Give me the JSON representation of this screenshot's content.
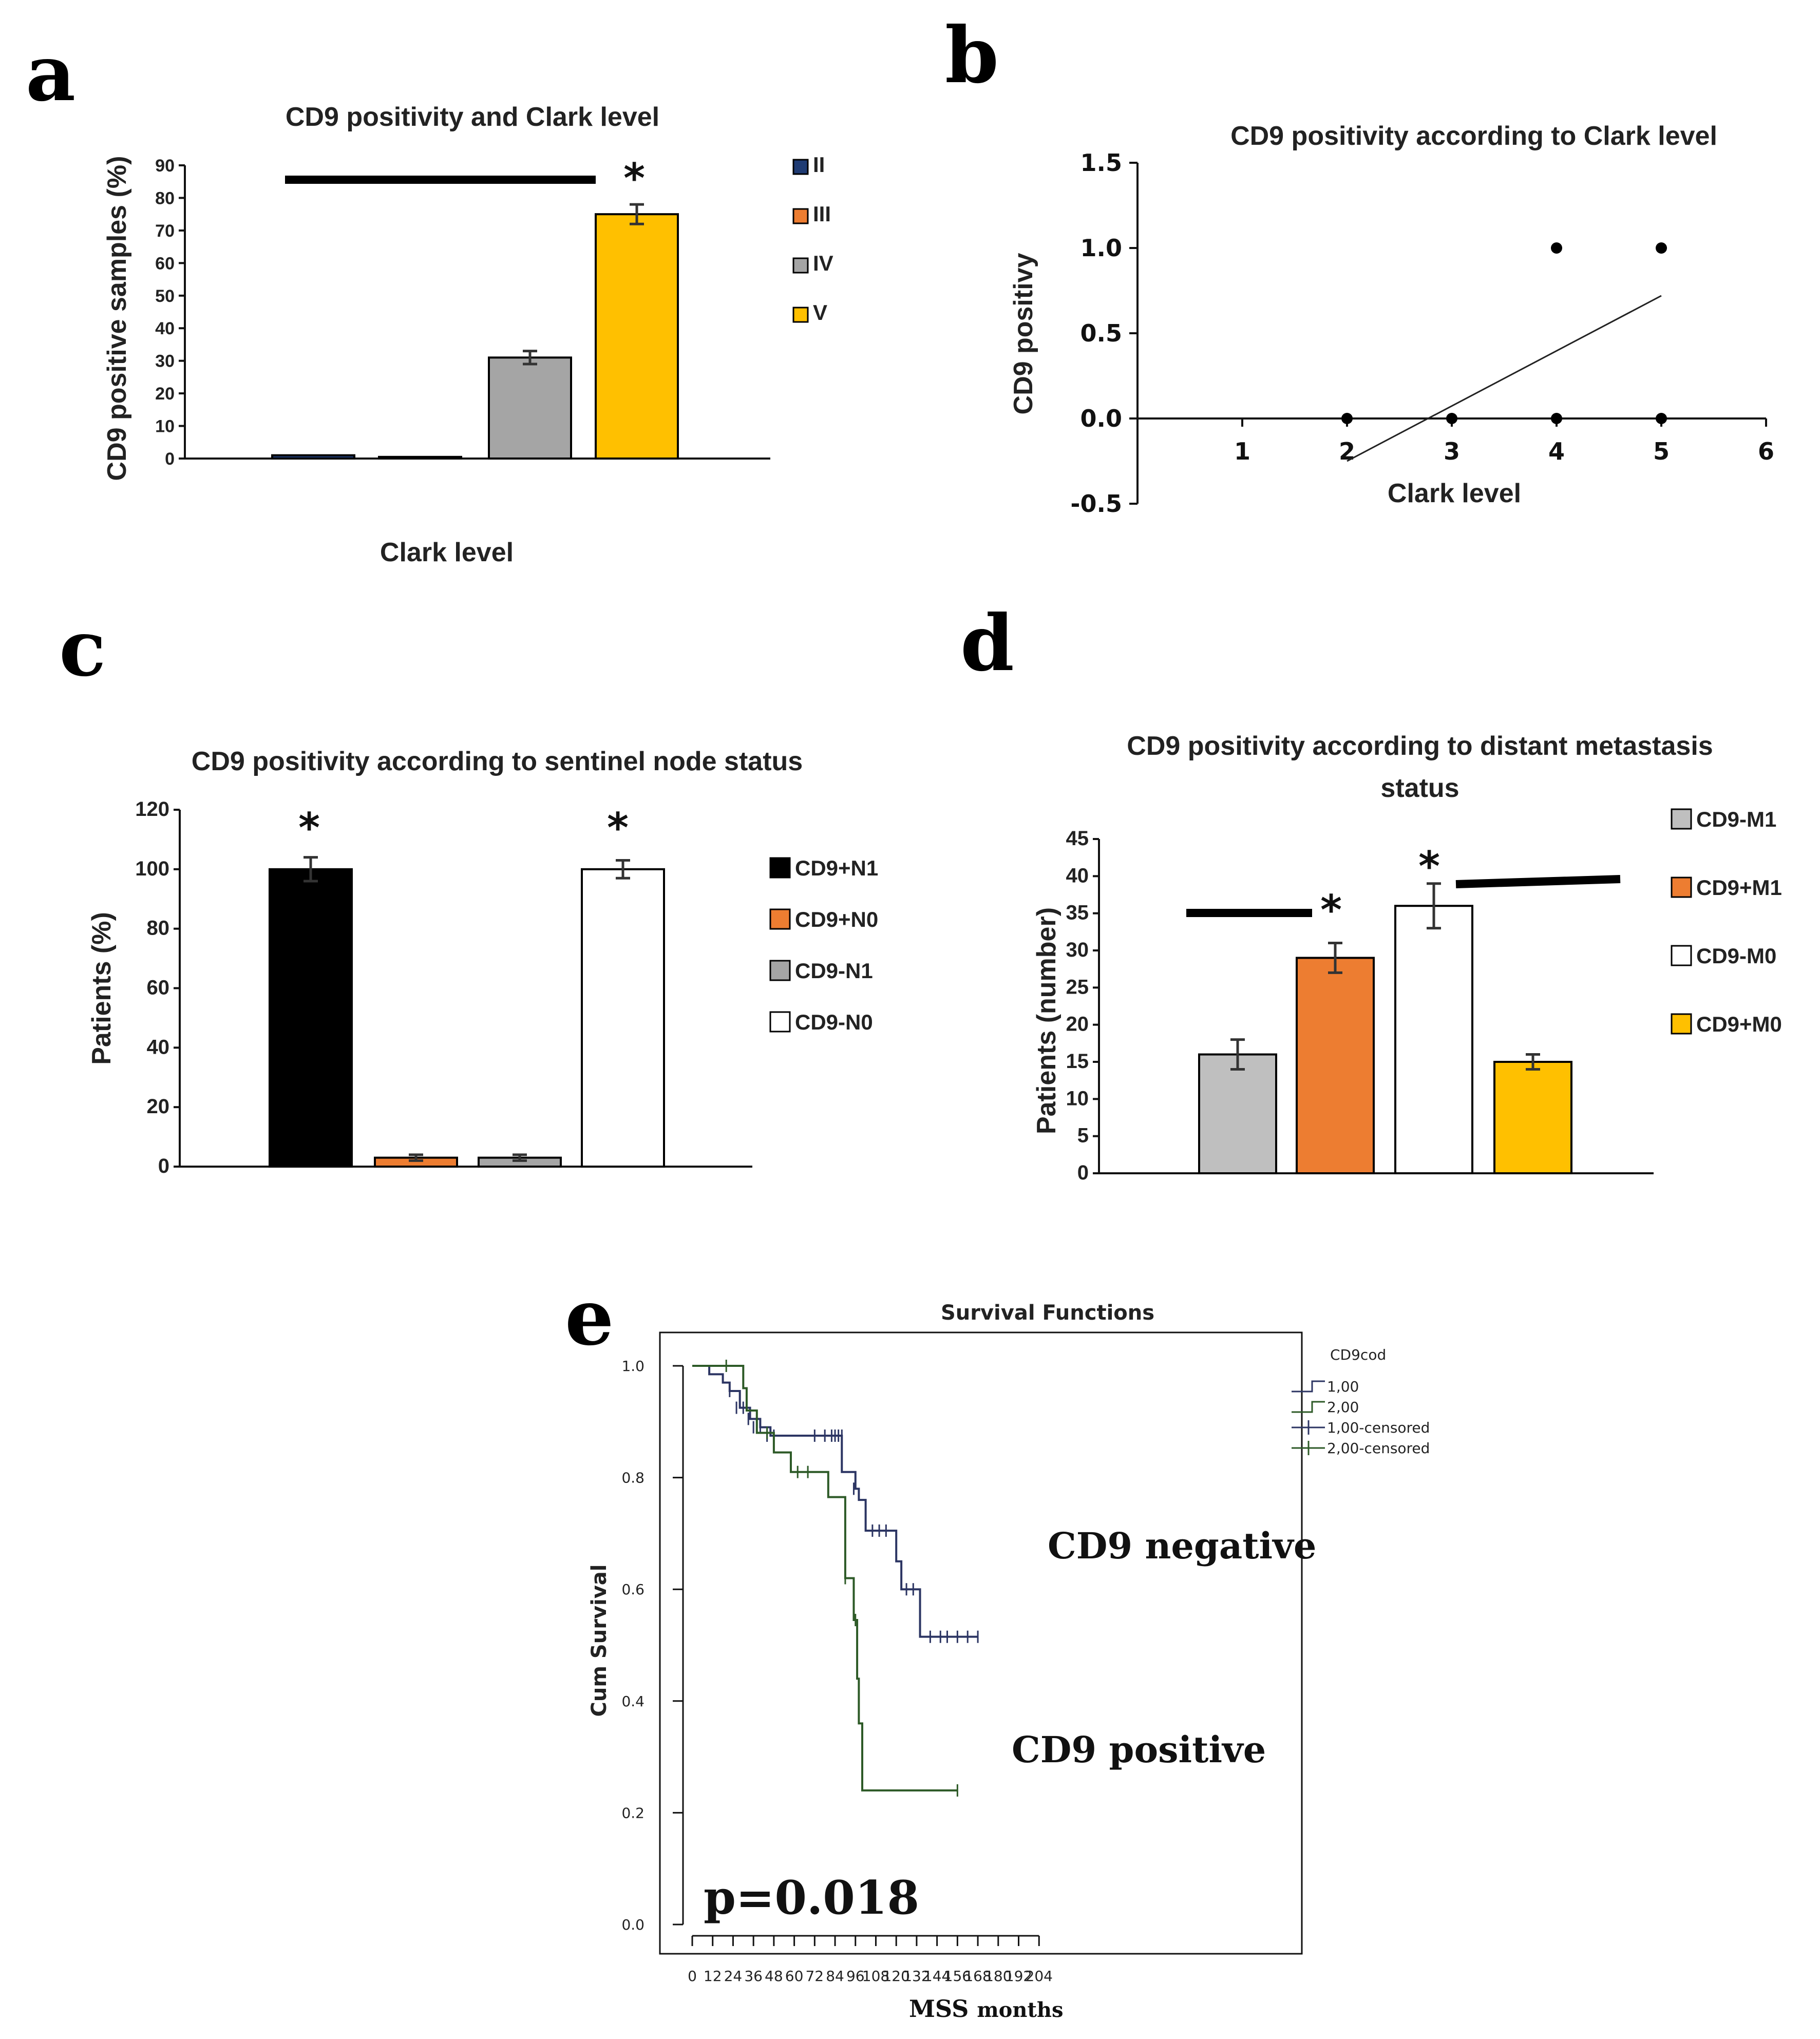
{
  "chart_data": [
    {
      "id": "a",
      "panel_label": "a",
      "type": "bar",
      "title": "CD9 positivity and Clark level",
      "xlabel": "Clark level",
      "ylabel": "CD9 positive samples (%)",
      "ylim": [
        0,
        90
      ],
      "yticks": [
        0,
        10,
        20,
        30,
        40,
        50,
        60,
        70,
        80,
        90
      ],
      "categories": [
        "II",
        "III",
        "IV",
        "V"
      ],
      "values": [
        1,
        0.5,
        31,
        75
      ],
      "errors": [
        0,
        0,
        2,
        3
      ],
      "colors": [
        "#1f3b73",
        "#ed7d31",
        "#a5a5a5",
        "#ffc000"
      ],
      "legend": [
        "II",
        "III",
        "IV",
        "V"
      ],
      "annotations": [
        "*"
      ]
    },
    {
      "id": "b",
      "panel_label": "b",
      "type": "scatter",
      "title": "CD9 positivity according to Clark level",
      "xlabel": "Clark level",
      "ylabel": "CD9 positivy",
      "xlim": [
        0,
        6
      ],
      "ylim": [
        -0.5,
        1.5
      ],
      "xticks": [
        1,
        2,
        3,
        4,
        5,
        6
      ],
      "yticks": [
        "-0.5",
        "0.0",
        "0.5",
        "1.0",
        "1.5"
      ],
      "points": [
        [
          2,
          0
        ],
        [
          3,
          0
        ],
        [
          4,
          0
        ],
        [
          5,
          0
        ],
        [
          4,
          1
        ],
        [
          5,
          1
        ]
      ],
      "fit_line": [
        [
          2,
          -0.25
        ],
        [
          5,
          0.72
        ]
      ]
    },
    {
      "id": "c",
      "panel_label": "c",
      "type": "bar",
      "title": "CD9 positivity according to sentinel node status",
      "xlabel": "",
      "ylabel": "Patients (%)",
      "ylim": [
        0,
        120
      ],
      "yticks": [
        0,
        20,
        40,
        60,
        80,
        100,
        120
      ],
      "categories": [
        "CD9+N1",
        "CD9+N0",
        "CD9-N1",
        "CD9-N0"
      ],
      "values": [
        100,
        3,
        3,
        100
      ],
      "errors": [
        4,
        1,
        1,
        3
      ],
      "colors": [
        "#000000",
        "#ed7d31",
        "#a5a5a5",
        "#ffffff"
      ],
      "legend": [
        "CD9+N1",
        "CD9+N0",
        "CD9-N1",
        "CD9-N0"
      ],
      "annotations": [
        "*",
        "*"
      ]
    },
    {
      "id": "d",
      "panel_label": "d",
      "type": "bar",
      "title": "CD9 positivity according to distant metastasis",
      "title_line2": "status",
      "xlabel": "",
      "ylabel": "Patients (number)",
      "ylim": [
        0,
        45
      ],
      "yticks": [
        0,
        5,
        10,
        15,
        20,
        25,
        30,
        35,
        40,
        45
      ],
      "categories": [
        "CD9-M1",
        "CD9+M1",
        "CD9-M0",
        "CD9+M0"
      ],
      "values": [
        16,
        29,
        36,
        15
      ],
      "errors": [
        2,
        2,
        3,
        1
      ],
      "colors": [
        "#bfbfbf",
        "#ed7d31",
        "#ffffff",
        "#ffc000"
      ],
      "legend": [
        "CD9-M1",
        "CD9+M1",
        "CD9-M0",
        "CD9+M0"
      ],
      "annotations": [
        "*",
        "*"
      ]
    },
    {
      "id": "e",
      "panel_label": "e",
      "type": "line",
      "title": "Survival Functions",
      "xlabel": "MSS",
      "xlabel_unit": "months",
      "ylabel": "Cum Survival",
      "xlim": [
        0,
        204
      ],
      "ylim": [
        0,
        1
      ],
      "xticks": [
        0,
        12,
        24,
        36,
        48,
        60,
        72,
        84,
        96,
        108,
        120,
        132,
        144,
        156,
        168,
        180,
        192,
        204
      ],
      "yticks": [
        "0.0",
        "0.2",
        "0.4",
        "0.6",
        "0.8",
        "1.0"
      ],
      "legend_title": "CD9cod",
      "legend": [
        "1,00",
        "2,00",
        "1,00-censored",
        "2,00-censored"
      ],
      "series": [
        {
          "name": "1,00",
          "label": "CD9 negative",
          "color": "#2c3563",
          "x": [
            0,
            10,
            18,
            22,
            28,
            34,
            40,
            46,
            88,
            96,
            98,
            102,
            120,
            123,
            134,
            168
          ],
          "y": [
            1.0,
            0.985,
            0.97,
            0.955,
            0.925,
            0.905,
            0.89,
            0.875,
            0.81,
            0.78,
            0.76,
            0.705,
            0.65,
            0.6,
            0.515,
            0.515
          ],
          "censored_x": [
            22,
            26,
            30,
            33,
            36,
            40,
            44,
            48,
            72,
            78,
            82,
            84,
            86,
            88,
            95,
            106,
            110,
            114,
            126,
            130,
            140,
            146,
            150,
            156,
            162,
            168
          ],
          "censored_y": [
            0.955,
            0.925,
            0.925,
            0.905,
            0.89,
            0.89,
            0.875,
            0.875,
            0.875,
            0.875,
            0.875,
            0.875,
            0.875,
            0.875,
            0.78,
            0.705,
            0.705,
            0.705,
            0.6,
            0.6,
            0.515,
            0.515,
            0.515,
            0.515,
            0.515,
            0.515
          ]
        },
        {
          "name": "2,00",
          "label": "CD9 positive",
          "color": "#2d5a27",
          "x": [
            0,
            30,
            32,
            38,
            48,
            58,
            80,
            90,
            95,
            97,
            98,
            100,
            156
          ],
          "y": [
            1.0,
            0.96,
            0.92,
            0.88,
            0.845,
            0.81,
            0.765,
            0.62,
            0.545,
            0.44,
            0.36,
            0.24,
            0.24
          ],
          "censored_x": [
            20,
            44,
            62,
            68,
            90,
            96,
            156
          ],
          "censored_y": [
            1.0,
            0.88,
            0.81,
            0.81,
            0.62,
            0.545,
            0.24
          ]
        }
      ],
      "annotations": [
        "CD9 negative",
        "CD9 positive",
        "p=0.018"
      ]
    }
  ]
}
